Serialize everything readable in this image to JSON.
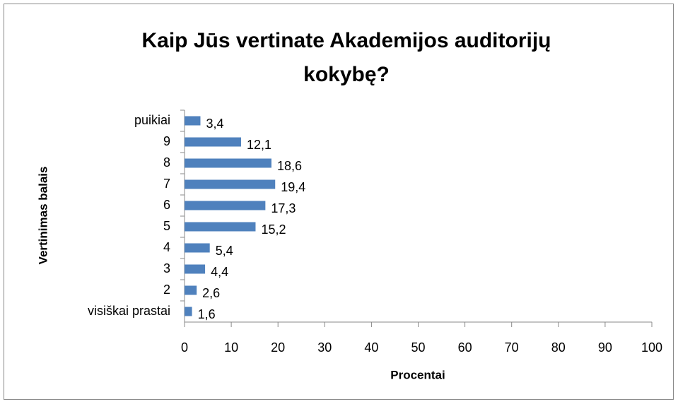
{
  "chart_data": {
    "type": "bar",
    "orientation": "horizontal",
    "title": "Kaip Jūs vertinate Akademijos auditorijų kokybę?",
    "x_label": "Procentai",
    "y_label": "Vertinimas balais",
    "categories": [
      "puikiai",
      "9",
      "8",
      "7",
      "6",
      "5",
      "4",
      "3",
      "2",
      "visiškai prastai"
    ],
    "values": [
      3.4,
      12.1,
      18.6,
      19.4,
      17.3,
      15.2,
      5.4,
      4.4,
      2.6,
      1.6
    ],
    "value_labels": [
      "3,4",
      "12,1",
      "18,6",
      "19,4",
      "17,3",
      "15,2",
      "5,4",
      "4,4",
      "2,6",
      "1,6"
    ],
    "color": "#4f81bd",
    "xlim": [
      0,
      100
    ],
    "xticks": [
      0,
      10,
      20,
      30,
      40,
      50,
      60,
      70,
      80,
      90,
      100
    ],
    "grid": false
  }
}
